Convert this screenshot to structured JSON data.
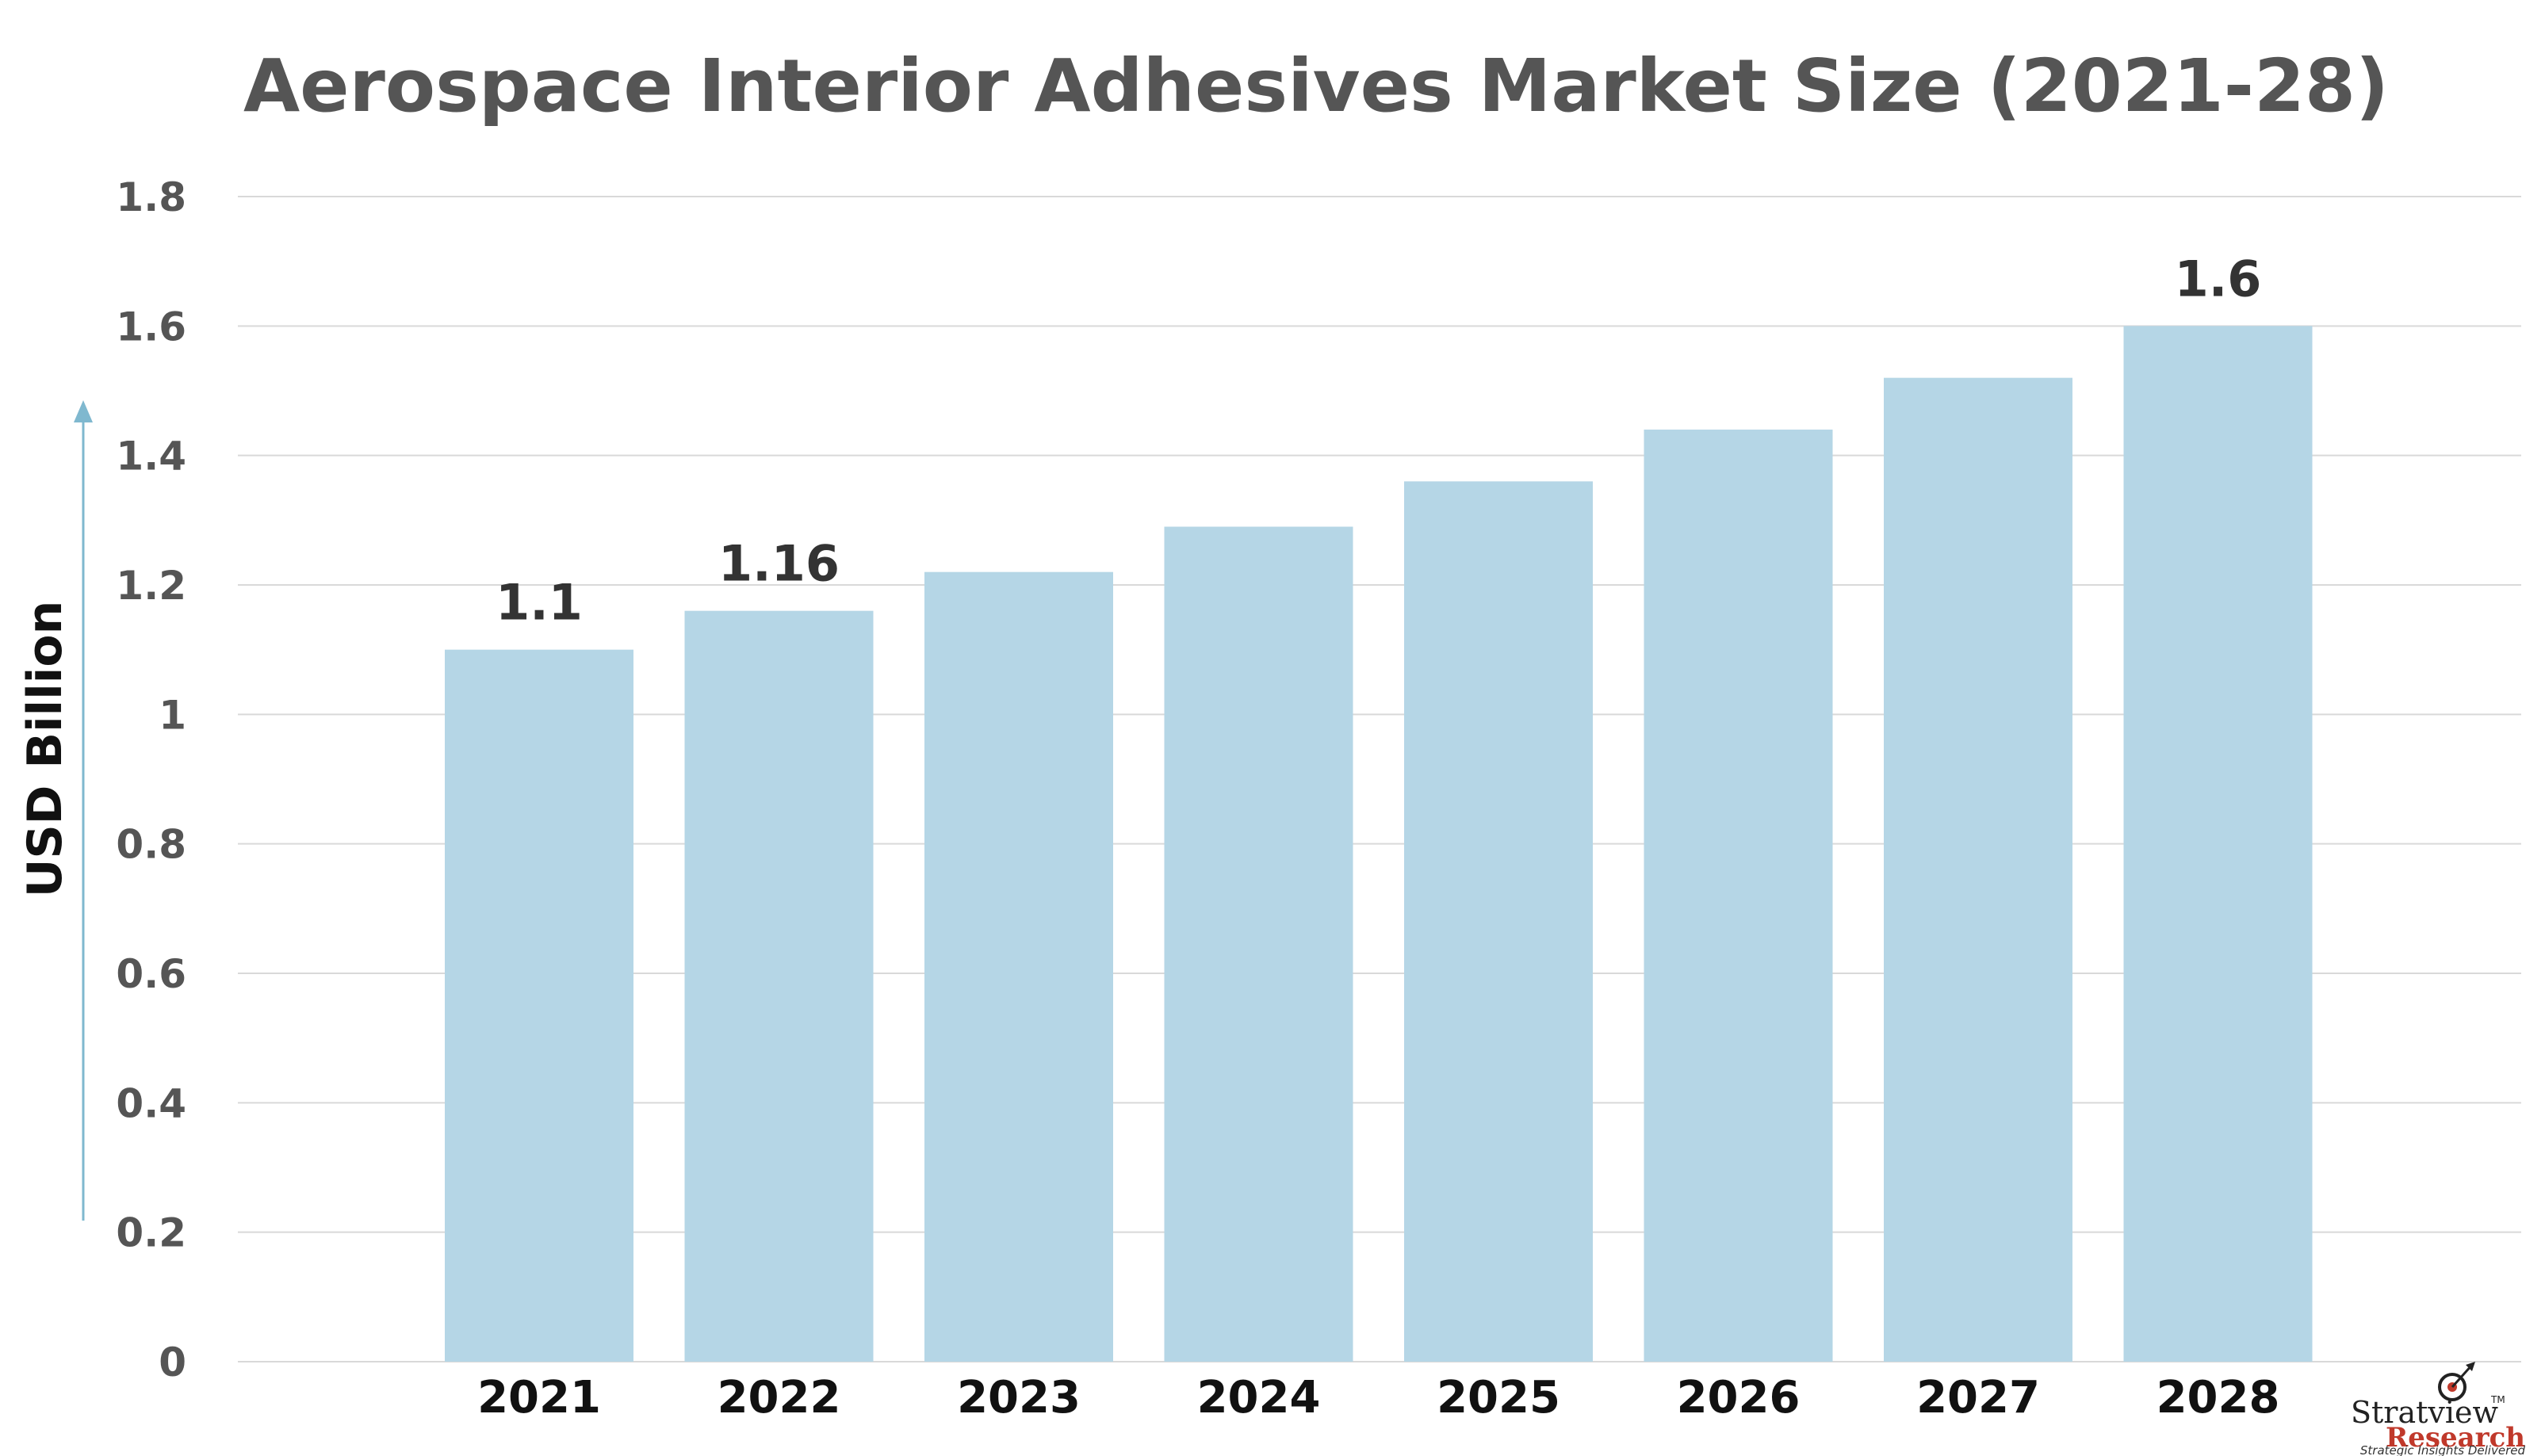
{
  "chart_data": {
    "type": "bar",
    "title": "Aerospace Interior Adhesives Market Size (2021-28)",
    "ylabel": "USD Billion",
    "xlabel": "",
    "categories": [
      "2021",
      "2022",
      "2023",
      "2024",
      "2025",
      "2026",
      "2027",
      "2028"
    ],
    "values": [
      1.1,
      1.16,
      1.22,
      1.29,
      1.36,
      1.44,
      1.52,
      1.6
    ],
    "data_labels": [
      "1.1",
      "1.16",
      "",
      "",
      "",
      "",
      "",
      "1.6"
    ],
    "ylim": [
      0,
      1.8
    ],
    "yticks": [
      "0",
      "0.2",
      "0.4",
      "0.6",
      "0.8",
      "1",
      "1.2",
      "1.4",
      "1.6",
      "1.8"
    ],
    "grid": true,
    "legend": "none",
    "colors": {
      "bar": "#b5d6e6",
      "grid": "#d9d9d9",
      "arrow": "#7fb8cf",
      "title": "#555555"
    }
  },
  "logo": {
    "name": "Stratview",
    "trademark": "TM",
    "sub": "Research",
    "tagline": "Strategic Insights Delivered",
    "icon": "target-arrow-icon"
  }
}
